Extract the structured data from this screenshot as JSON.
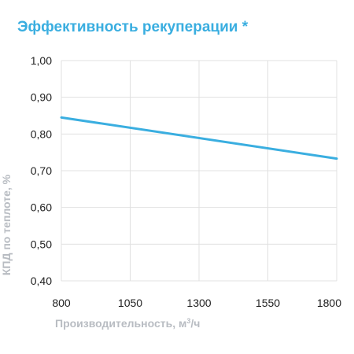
{
  "chart_data": {
    "type": "line",
    "title": "Эффективность рекуперации *",
    "xlabel": {
      "prefix": "Производительность, м",
      "superscript": "3",
      "suffix": "/ч"
    },
    "ylabel": "КПД по теплоте, %",
    "x_ticks": [
      "800",
      "1050",
      "1300",
      "1550",
      "1800"
    ],
    "y_ticks": [
      "0,40",
      "0,50",
      "0,60",
      "0,70",
      "0,80",
      "0,90",
      "1,00"
    ],
    "xlim": [
      800,
      1800
    ],
    "ylim": [
      0.4,
      1.0
    ],
    "grid": true,
    "series": [
      {
        "x": [
          800,
          1800
        ],
        "y": [
          0.845,
          0.733
        ],
        "color": "#3aaee0"
      }
    ],
    "colors": {
      "title": "#3aaee0",
      "line": "#3aaee0",
      "grid": "#e0e0e0",
      "axis_label": "#b8bcc2",
      "tick_label": "#222222"
    }
  }
}
